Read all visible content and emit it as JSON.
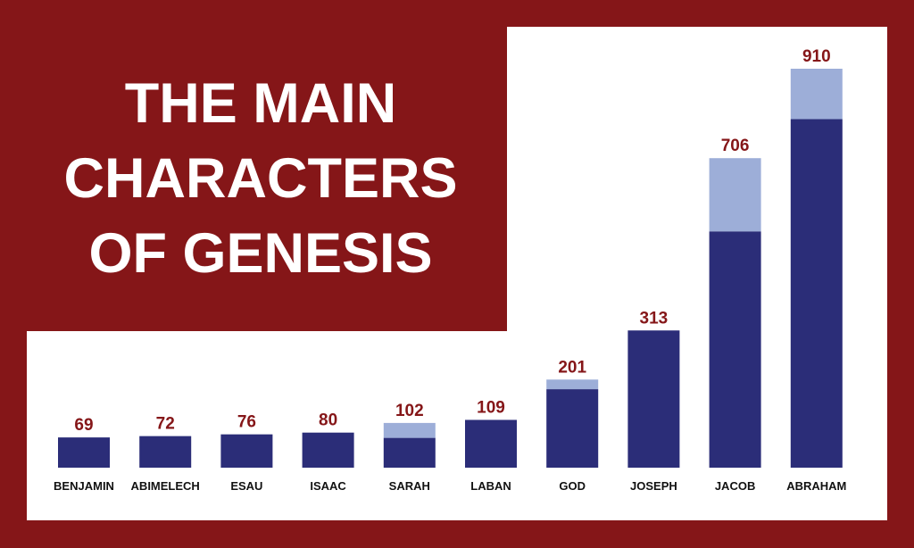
{
  "title_lines": [
    "THE MAIN",
    "CHARACTERS",
    "OF GENESIS"
  ],
  "colors": {
    "background": "#851618",
    "panel": "#ffffff",
    "bar_dark": "#2b2d78",
    "bar_light": "#9daed8",
    "value_label": "#851618",
    "category_label": "#111111",
    "title": "#ffffff"
  },
  "chart_data": {
    "type": "bar",
    "stacked": true,
    "title": "THE MAIN CHARACTERS OF GENESIS",
    "xlabel": "",
    "ylabel": "",
    "ylim": [
      0,
      910
    ],
    "grid": false,
    "categories": [
      "BENJAMIN",
      "ABIMELECH",
      "ESAU",
      "ISAAC",
      "SARAH",
      "LABAN",
      "GOD",
      "JOSEPH",
      "JACOB",
      "ABRAHAM"
    ],
    "totals": [
      69,
      72,
      76,
      80,
      102,
      109,
      201,
      313,
      706,
      910
    ],
    "series": [
      {
        "values": [
          69,
          72,
          76,
          80,
          68,
          109,
          179,
          313,
          539,
          795
        ]
      },
      {
        "values": [
          0,
          0,
          0,
          0,
          34,
          0,
          22,
          0,
          167,
          115
        ]
      }
    ]
  }
}
